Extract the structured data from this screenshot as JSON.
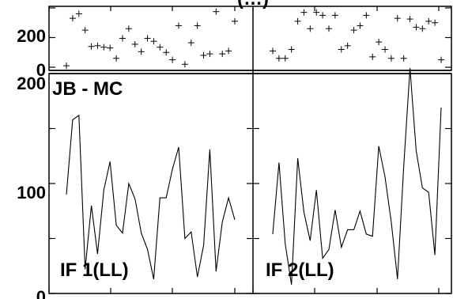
{
  "header_title": "(…)",
  "chart_data": [
    {
      "type": "scatter",
      "panel": "upper",
      "series": [
        {
          "values": [
            10,
            330,
            360,
            250,
            140,
            145,
            135,
            130,
            60,
            195,
            260,
            155,
            105,
            195,
            175,
            135,
            100,
            50,
            280,
            20,
            165,
            280,
            80,
            90,
            375,
            90,
            110,
            310
          ]
        },
        {
          "values": [
            110,
            60,
            60,
            120,
            310,
            370,
            260,
            370,
            350,
            260,
            350,
            120,
            145,
            250,
            280,
            350,
            70,
            170,
            120,
            60,
            330,
            60,
            325,
            270,
            260,
            310,
            300,
            50
          ]
        }
      ],
      "ylim": [
        0,
        400
      ],
      "yticks": [
        "200",
        "0"
      ]
    },
    {
      "type": "line",
      "panel": "lower",
      "title": "JB - MC",
      "ylim": [
        0,
        200
      ],
      "yticks": [
        "200",
        "100",
        "0"
      ],
      "series": [
        {
          "name": "IF 1(LL)",
          "values": [
            90,
            158,
            162,
            22,
            80,
            36,
            94,
            120,
            62,
            55,
            100,
            86,
            55,
            40,
            13,
            87,
            87,
            113,
            133,
            50,
            56,
            15,
            44,
            131,
            20,
            65,
            87,
            67
          ]
        },
        {
          "name": "IF 2(LL)",
          "values": [
            54,
            119,
            45,
            8,
            123,
            74,
            48,
            94,
            32,
            40,
            76,
            42,
            58,
            58,
            75,
            54,
            52,
            134,
            106,
            65,
            13,
            116,
            205,
            130,
            96,
            92,
            35,
            169
          ]
        }
      ]
    }
  ]
}
